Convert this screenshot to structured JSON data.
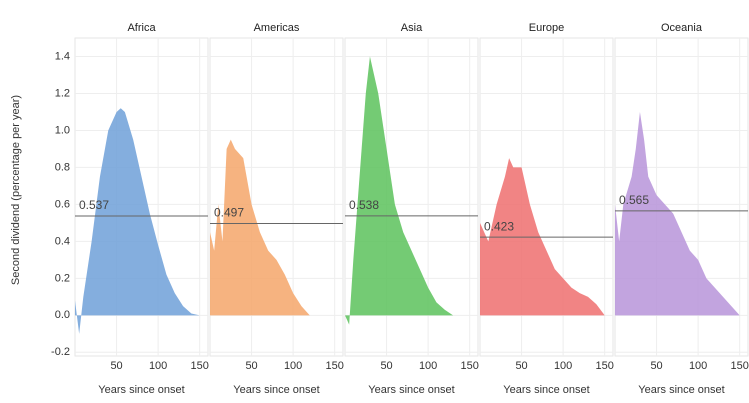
{
  "chart_data": [
    {
      "type": "area",
      "title": "Africa",
      "ylabel": "Second dividend (percentage per year)",
      "xlabel": "Years since onset",
      "color": "#6fa0d8",
      "x": [
        0,
        5,
        10,
        20,
        30,
        40,
        50,
        55,
        60,
        70,
        80,
        90,
        100,
        110,
        120,
        130,
        140,
        150
      ],
      "values": [
        0.08,
        -0.1,
        0.1,
        0.4,
        0.75,
        1.0,
        1.1,
        1.12,
        1.1,
        0.95,
        0.75,
        0.55,
        0.38,
        0.22,
        0.12,
        0.05,
        0.01,
        0
      ],
      "mean": 0.537,
      "xlim": [
        0,
        160
      ],
      "xticks": [
        50,
        100,
        150
      ],
      "ylim": [
        -0.22,
        1.5
      ],
      "yticks": [
        -0.2,
        0.0,
        0.2,
        0.4,
        0.6,
        0.8,
        1.0,
        1.2,
        1.4
      ],
      "grid": true
    },
    {
      "type": "area",
      "title": "Americas",
      "xlabel": "Years since onset",
      "color": "#f5a66a",
      "x": [
        0,
        5,
        10,
        15,
        20,
        25,
        30,
        40,
        50,
        60,
        70,
        80,
        90,
        100,
        110,
        120
      ],
      "values": [
        0.45,
        0.35,
        0.6,
        0.4,
        0.9,
        0.95,
        0.9,
        0.85,
        0.6,
        0.45,
        0.35,
        0.3,
        0.22,
        0.12,
        0.05,
        0
      ],
      "mean": 0.497,
      "xlim": [
        0,
        160
      ],
      "xticks": [
        50,
        100,
        150
      ]
    },
    {
      "type": "area",
      "title": "Asia",
      "xlabel": "Years since onset",
      "color": "#5cc25c",
      "x": [
        0,
        5,
        10,
        20,
        25,
        30,
        35,
        40,
        50,
        60,
        70,
        80,
        90,
        100,
        110,
        120,
        130
      ],
      "values": [
        0,
        -0.05,
        0.3,
        0.9,
        1.2,
        1.4,
        1.3,
        1.2,
        0.9,
        0.6,
        0.45,
        0.35,
        0.25,
        0.15,
        0.07,
        0.03,
        0
      ],
      "mean": 0.538,
      "xlim": [
        0,
        160
      ],
      "xticks": [
        50,
        100,
        150
      ]
    },
    {
      "type": "area",
      "title": "Europe",
      "xlabel": "Years since onset",
      "color": "#ef6f6f",
      "x": [
        0,
        10,
        20,
        30,
        35,
        40,
        50,
        60,
        70,
        80,
        90,
        100,
        110,
        120,
        130,
        140,
        150
      ],
      "values": [
        0.5,
        0.4,
        0.6,
        0.75,
        0.85,
        0.8,
        0.8,
        0.6,
        0.45,
        0.35,
        0.25,
        0.2,
        0.15,
        0.12,
        0.1,
        0.06,
        0
      ],
      "mean": 0.423,
      "xlim": [
        0,
        160
      ],
      "xticks": [
        50,
        100,
        150
      ]
    },
    {
      "type": "area",
      "title": "Oceania",
      "xlabel": "Years since onset",
      "color": "#b794d9",
      "x": [
        0,
        5,
        10,
        20,
        25,
        30,
        35,
        40,
        50,
        60,
        70,
        80,
        90,
        100,
        110,
        120,
        130,
        140,
        150
      ],
      "values": [
        0.6,
        0.4,
        0.6,
        0.75,
        0.9,
        1.1,
        0.95,
        0.75,
        0.65,
        0.6,
        0.55,
        0.45,
        0.35,
        0.3,
        0.2,
        0.15,
        0.1,
        0.05,
        0
      ],
      "mean": 0.565,
      "xlim": [
        0,
        160
      ],
      "xticks": [
        50,
        100,
        150
      ]
    }
  ]
}
